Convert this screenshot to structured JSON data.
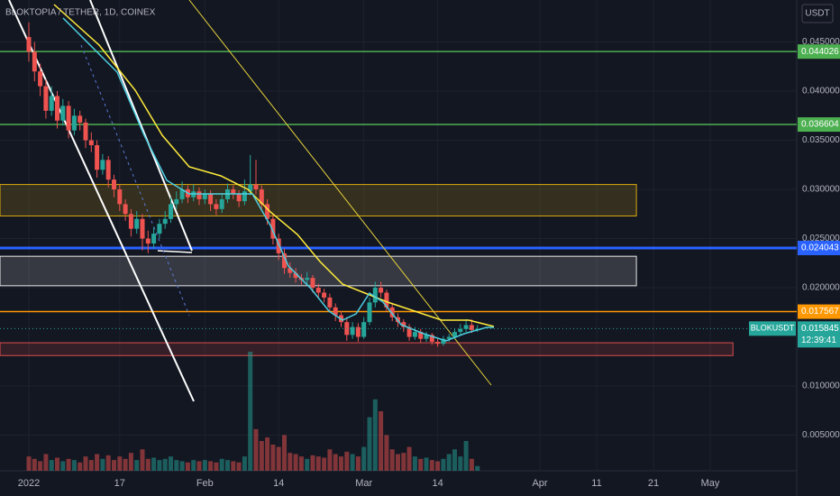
{
  "chart_data": {
    "type": "candlestick",
    "title": "BLOKTOPIA / TETHER, 1D, COINEX",
    "currency": "USDT",
    "symbol": "BLOKUSDT",
    "countdown": "12:39:41",
    "last_price": 0.015845,
    "up_color": "#26a69a",
    "down_color": "#ef5350",
    "x": [
      "2022-01-01",
      "2022-01-02",
      "2022-01-03",
      "2022-01-04",
      "2022-01-05",
      "2022-01-06",
      "2022-01-07",
      "2022-01-08",
      "2022-01-09",
      "2022-01-10",
      "2022-01-11",
      "2022-01-12",
      "2022-01-13",
      "2022-01-14",
      "2022-01-15",
      "2022-01-16",
      "2022-01-17",
      "2022-01-18",
      "2022-01-19",
      "2022-01-20",
      "2022-01-21",
      "2022-01-22",
      "2022-01-23",
      "2022-01-24",
      "2022-01-25",
      "2022-01-26",
      "2022-01-27",
      "2022-01-28",
      "2022-01-29",
      "2022-01-30",
      "2022-01-31",
      "2022-02-01",
      "2022-02-02",
      "2022-02-03",
      "2022-02-04",
      "2022-02-05",
      "2022-02-06",
      "2022-02-07",
      "2022-02-08",
      "2022-02-09",
      "2022-02-10",
      "2022-02-11",
      "2022-02-12",
      "2022-02-13",
      "2022-02-14",
      "2022-02-15",
      "2022-02-16",
      "2022-02-17",
      "2022-02-18",
      "2022-02-19",
      "2022-02-20",
      "2022-02-21",
      "2022-02-22",
      "2022-02-23",
      "2022-02-24",
      "2022-02-25",
      "2022-02-26",
      "2022-02-27",
      "2022-02-28",
      "2022-03-01",
      "2022-03-02",
      "2022-03-03",
      "2022-03-04",
      "2022-03-05",
      "2022-03-06",
      "2022-03-07",
      "2022-03-08",
      "2022-03-09",
      "2022-03-10",
      "2022-03-11",
      "2022-03-12",
      "2022-03-13",
      "2022-03-14",
      "2022-03-15",
      "2022-03-16",
      "2022-03-17",
      "2022-03-18",
      "2022-03-19",
      "2022-03-20",
      "2022-03-21"
    ],
    "ohlc": [
      [
        0.0455,
        0.047,
        0.043,
        0.044
      ],
      [
        0.044,
        0.045,
        0.041,
        0.042
      ],
      [
        0.042,
        0.0428,
        0.0395,
        0.0405
      ],
      [
        0.0405,
        0.0412,
        0.0372,
        0.038
      ],
      [
        0.038,
        0.0405,
        0.0375,
        0.0395
      ],
      [
        0.0395,
        0.04,
        0.0362,
        0.037
      ],
      [
        0.037,
        0.0392,
        0.0365,
        0.0385
      ],
      [
        0.0385,
        0.039,
        0.0352,
        0.036
      ],
      [
        0.036,
        0.0382,
        0.0355,
        0.0375
      ],
      [
        0.0375,
        0.038,
        0.036,
        0.0368
      ],
      [
        0.0368,
        0.0372,
        0.0342,
        0.035
      ],
      [
        0.035,
        0.0358,
        0.0338,
        0.0345
      ],
      [
        0.0345,
        0.035,
        0.0312,
        0.032
      ],
      [
        0.032,
        0.0336,
        0.0315,
        0.033
      ],
      [
        0.033,
        0.0334,
        0.0302,
        0.031
      ],
      [
        0.031,
        0.0315,
        0.0292,
        0.03
      ],
      [
        0.03,
        0.0305,
        0.0278,
        0.0285
      ],
      [
        0.0285,
        0.029,
        0.0268,
        0.0275
      ],
      [
        0.0275,
        0.028,
        0.0252,
        0.026
      ],
      [
        0.026,
        0.0278,
        0.0255,
        0.027
      ],
      [
        0.027,
        0.0275,
        0.0238,
        0.025
      ],
      [
        0.025,
        0.0258,
        0.0235,
        0.0245
      ],
      [
        0.0245,
        0.0262,
        0.024,
        0.0255
      ],
      [
        0.0255,
        0.027,
        0.025,
        0.0265
      ],
      [
        0.0265,
        0.0278,
        0.026,
        0.027
      ],
      [
        0.027,
        0.0292,
        0.0266,
        0.0285
      ],
      [
        0.0285,
        0.0298,
        0.028,
        0.029
      ],
      [
        0.029,
        0.0308,
        0.0286,
        0.03
      ],
      [
        0.03,
        0.0304,
        0.0286,
        0.0292
      ],
      [
        0.0292,
        0.0305,
        0.0288,
        0.0298
      ],
      [
        0.0298,
        0.0302,
        0.0284,
        0.029
      ],
      [
        0.029,
        0.03,
        0.0285,
        0.0295
      ],
      [
        0.0295,
        0.0299,
        0.0278,
        0.0285
      ],
      [
        0.0285,
        0.029,
        0.0274,
        0.028
      ],
      [
        0.028,
        0.0296,
        0.0276,
        0.029
      ],
      [
        0.029,
        0.0306,
        0.0286,
        0.03
      ],
      [
        0.03,
        0.0304,
        0.029,
        0.0295
      ],
      [
        0.0295,
        0.0299,
        0.0282,
        0.0288
      ],
      [
        0.0288,
        0.031,
        0.0284,
        0.0298
      ],
      [
        0.0298,
        0.0335,
        0.0294,
        0.0305
      ],
      [
        0.0305,
        0.033,
        0.0295,
        0.03
      ],
      [
        0.03,
        0.0304,
        0.028,
        0.0285
      ],
      [
        0.0285,
        0.029,
        0.0264,
        0.027
      ],
      [
        0.027,
        0.0274,
        0.0244,
        0.025
      ],
      [
        0.025,
        0.0255,
        0.0228,
        0.0235
      ],
      [
        0.0235,
        0.024,
        0.0214,
        0.022
      ],
      [
        0.022,
        0.0226,
        0.021,
        0.0215
      ],
      [
        0.0215,
        0.022,
        0.0205,
        0.021
      ],
      [
        0.021,
        0.0214,
        0.0203,
        0.0208
      ],
      [
        0.0208,
        0.0216,
        0.0204,
        0.021
      ],
      [
        0.021,
        0.0213,
        0.0195,
        0.02
      ],
      [
        0.02,
        0.0204,
        0.019,
        0.0195
      ],
      [
        0.0195,
        0.0199,
        0.0185,
        0.019
      ],
      [
        0.019,
        0.0194,
        0.0175,
        0.018
      ],
      [
        0.018,
        0.0184,
        0.0166,
        0.0172
      ],
      [
        0.0172,
        0.0176,
        0.016,
        0.0165
      ],
      [
        0.0165,
        0.017,
        0.0146,
        0.0152
      ],
      [
        0.0152,
        0.0165,
        0.0148,
        0.016
      ],
      [
        0.016,
        0.0164,
        0.0145,
        0.015
      ],
      [
        0.015,
        0.017,
        0.0148,
        0.0165
      ],
      [
        0.0165,
        0.019,
        0.0162,
        0.0185
      ],
      [
        0.0185,
        0.0206,
        0.018,
        0.02
      ],
      [
        0.02,
        0.0206,
        0.019,
        0.0195
      ],
      [
        0.0195,
        0.0198,
        0.0176,
        0.018
      ],
      [
        0.018,
        0.0184,
        0.0166,
        0.017
      ],
      [
        0.017,
        0.0174,
        0.016,
        0.0165
      ],
      [
        0.0165,
        0.0168,
        0.0155,
        0.016
      ],
      [
        0.016,
        0.0163,
        0.0146,
        0.015
      ],
      [
        0.015,
        0.016,
        0.0147,
        0.0155
      ],
      [
        0.0155,
        0.0158,
        0.0144,
        0.0148
      ],
      [
        0.0148,
        0.0155,
        0.0145,
        0.0152
      ],
      [
        0.0152,
        0.0154,
        0.0142,
        0.0145
      ],
      [
        0.0145,
        0.0148,
        0.014,
        0.0143
      ],
      [
        0.0143,
        0.0151,
        0.0141,
        0.0148
      ],
      [
        0.0148,
        0.0153,
        0.0145,
        0.015
      ],
      [
        0.015,
        0.0158,
        0.0148,
        0.0155
      ],
      [
        0.0155,
        0.0163,
        0.0152,
        0.0158
      ],
      [
        0.0158,
        0.0168,
        0.0155,
        0.0162
      ],
      [
        0.0162,
        0.0168,
        0.0154,
        0.0157
      ],
      [
        0.0157,
        0.0162,
        0.0155,
        0.0158
      ]
    ],
    "volume": [
      12,
      10,
      8,
      14,
      9,
      11,
      8,
      10,
      9,
      7,
      12,
      9,
      14,
      10,
      13,
      9,
      12,
      10,
      15,
      9,
      18,
      10,
      11,
      9,
      10,
      12,
      9,
      8,
      7,
      9,
      8,
      9,
      8,
      7,
      10,
      9,
      8,
      7,
      12,
      100,
      35,
      25,
      28,
      22,
      20,
      30,
      15,
      14,
      12,
      10,
      13,
      12,
      11,
      18,
      14,
      12,
      16,
      14,
      12,
      20,
      45,
      60,
      50,
      30,
      18,
      14,
      15,
      20,
      12,
      10,
      11,
      9,
      8,
      10,
      14,
      18,
      12,
      25,
      10,
      4
    ],
    "ylim": [
      0.00138,
      0.04927
    ],
    "yticks": [
      {
        "value": 0.005,
        "label": "0.005000"
      },
      {
        "value": 0.01,
        "label": "0.010000"
      },
      {
        "value": 0.02,
        "label": "0.020000"
      },
      {
        "value": 0.025,
        "label": "0.025000"
      },
      {
        "value": 0.03,
        "label": "0.030000"
      },
      {
        "value": 0.035,
        "label": "0.035000"
      },
      {
        "value": 0.04,
        "label": "0.040000"
      },
      {
        "value": 0.045,
        "label": "0.045000"
      }
    ],
    "xticks": [
      {
        "value": "2022-01-01",
        "label": "2022"
      },
      {
        "value": "2022-01-17",
        "label": "17"
      },
      {
        "value": "2022-02-01",
        "label": "Feb"
      },
      {
        "value": "2022-02-14",
        "label": "14"
      },
      {
        "value": "2022-03-01",
        "label": "Mar"
      },
      {
        "value": "2022-03-14",
        "label": "14"
      },
      {
        "value": "2022-04-01",
        "label": "Apr"
      },
      {
        "value": "2022-04-11",
        "label": "11"
      },
      {
        "value": "2022-04-21",
        "label": "21"
      },
      {
        "value": "2022-05-01",
        "label": "May"
      }
    ],
    "levels": [
      {
        "value": 0.044026,
        "color": "#4caf50"
      },
      {
        "value": 0.036604,
        "color": "#4caf50"
      },
      {
        "value": 0.024043,
        "color": "#2962ff"
      },
      {
        "value": 0.017567,
        "color": "#ff9800"
      }
    ],
    "zones": [
      {
        "top": 0.0305,
        "bottom": 0.0273,
        "end": "2022-04-18",
        "color": "#f0b90b"
      },
      {
        "top": 0.0232,
        "bottom": 0.0202,
        "end": "2022-04-18",
        "color": "#ffffff"
      },
      {
        "top": 0.0144,
        "bottom": 0.0131,
        "end": "2022-05-05",
        "color": "#ef5350"
      }
    ]
  }
}
